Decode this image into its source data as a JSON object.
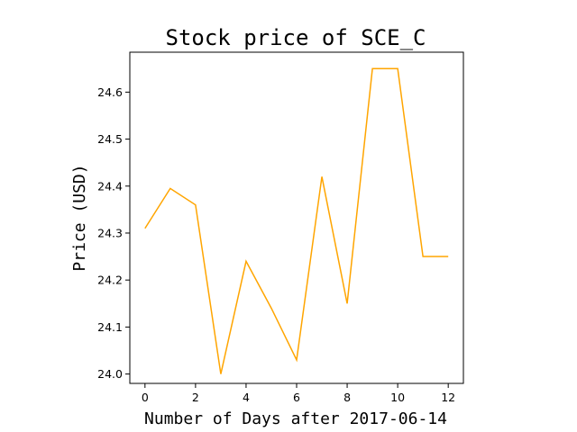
{
  "chart_data": {
    "type": "line",
    "title": "Stock price of SCE_C",
    "xlabel": "Number of Days after 2017-06-14",
    "ylabel": "Price (USD)",
    "xlim": [
      -0.6,
      12.6
    ],
    "ylim": [
      23.98,
      24.685
    ],
    "xticks": [
      0,
      2,
      4,
      6,
      8,
      10,
      12
    ],
    "yticks": [
      24.0,
      24.1,
      24.2,
      24.3,
      24.4,
      24.5,
      24.6
    ],
    "grid": false,
    "series": [
      {
        "color": "#ffa500",
        "x": [
          0,
          1,
          2,
          3,
          4,
          5,
          6,
          7,
          8,
          9,
          10,
          11,
          12
        ],
        "y": [
          24.31,
          24.395,
          24.36,
          24.0,
          24.24,
          24.14,
          24.03,
          24.42,
          24.15,
          24.65,
          24.65,
          24.25,
          24.25
        ]
      }
    ]
  }
}
